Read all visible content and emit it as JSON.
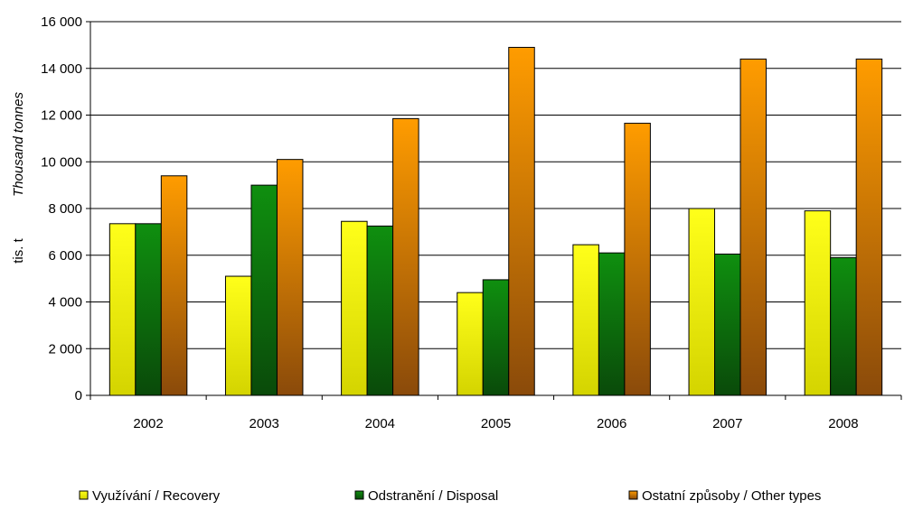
{
  "chart_data": {
    "type": "bar",
    "categories": [
      "2002",
      "2003",
      "2004",
      "2005",
      "2006",
      "2007",
      "2008"
    ],
    "series": [
      {
        "name": "Využívání / Recovery",
        "values": [
          7350,
          5100,
          7450,
          4400,
          6450,
          8000,
          7900
        ],
        "color": "#f2f200"
      },
      {
        "name": "Odstranění / Disposal",
        "values": [
          7350,
          9000,
          7250,
          4950,
          6100,
          6050,
          5900
        ],
        "color": "#0a7a0a"
      },
      {
        "name": "Ostatní způsoby / Other types",
        "values": [
          9400,
          10100,
          11850,
          14900,
          11650,
          14400,
          14400
        ],
        "color": "#ff9900"
      }
    ],
    "ylabel_main": "tis. t",
    "ylabel_sub": "Thousand tonnes",
    "ylim": [
      0,
      16000
    ],
    "yticks": [
      0,
      2000,
      4000,
      6000,
      8000,
      10000,
      12000,
      14000,
      16000
    ],
    "ytick_labels": [
      "0",
      "2 000",
      "4 000",
      "6 000",
      "8 000",
      "10 000",
      "12 000",
      "14 000",
      "16 000"
    ],
    "grid": true,
    "legend_position": "bottom"
  }
}
